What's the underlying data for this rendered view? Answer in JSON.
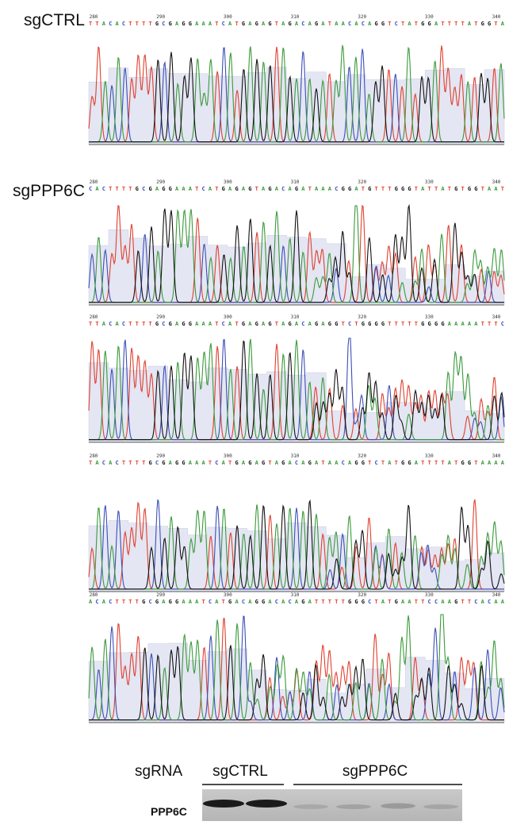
{
  "panels": [
    {
      "label": "sgCTRL",
      "positions": [
        280,
        290,
        300,
        310,
        320,
        330,
        340
      ],
      "sequence": "TTACACTTTTGCGAGGAAATCATGAGAGTAGACAGATAACACAGGTCTATGGATTTTATGGTA"
    },
    {
      "label": "sgPPP6C",
      "positions": [
        280,
        290,
        300,
        310,
        320,
        330,
        340
      ],
      "sequence": "CACTTTTGCGAGGAAATCATGAGAGTAGACAGATAAACGGATGTTTGGGTATTATGTGGTAAT"
    },
    {
      "positions": [
        280,
        290,
        300,
        310,
        320,
        330,
        340
      ],
      "sequence": "TTACACTTTTGCGAGGAAATCATGAGAGTAGACAGAGGTCTGGGGTTTTTGGGGAAAAATTTC"
    },
    {
      "positions": [
        280,
        290,
        300,
        310,
        320,
        330,
        340
      ],
      "sequence": "TACACTTTTGCGAGGAAATCATGAGAGTAGACAGATAACAGGTCTATGGATTTTATGGTAAAA"
    },
    {
      "positions": [
        280,
        290,
        300,
        310,
        320,
        330,
        340
      ],
      "sequence": "ACACTTTTGCGAGGAAATCATGACAGGACACAGATTTTTGGGCTATGAATTCCAAGTTCACAA"
    }
  ],
  "blot": {
    "sgrna_label": "sgRNA",
    "groups": [
      "sgCTRL",
      "sgPPP6C"
    ],
    "protein": "PPP6C"
  }
}
